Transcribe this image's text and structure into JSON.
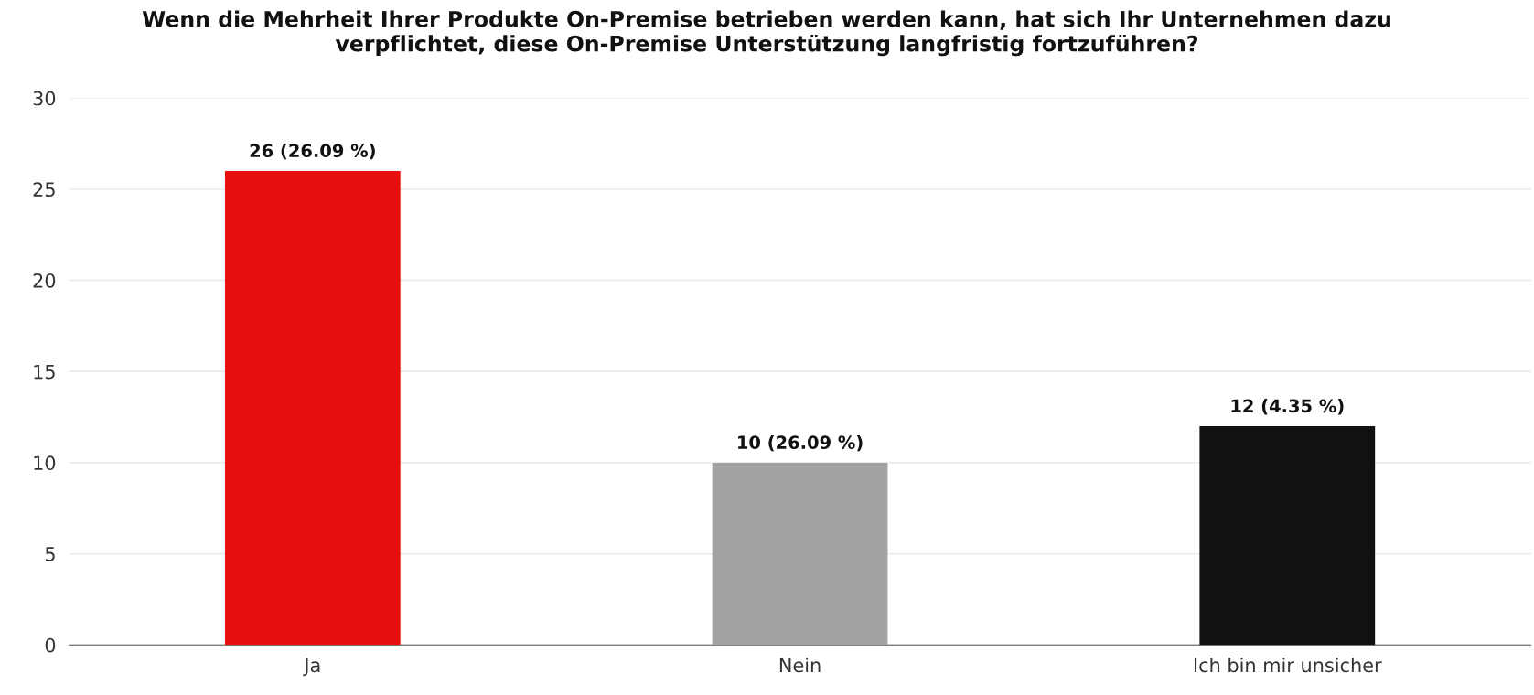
{
  "chart_data": {
    "type": "bar",
    "title": "Wenn die Mehrheit Ihrer Produkte On-Premise betrieben werden kann, hat sich Ihr Unternehmen dazu\nverpflichtet, diese On-Premise Unterstützung langfristig fortzuführen?",
    "categories": [
      "Ja",
      "Nein",
      "Ich bin mir unsicher"
    ],
    "values": [
      26,
      10,
      12
    ],
    "colors": [
      "#e8100f",
      "#a3a3a5",
      "#111111"
    ],
    "value_labels": [
      "26 (26.09 %)",
      "10 (26.09 %)",
      "12 (4.35 %)"
    ],
    "ylim": [
      0,
      30
    ],
    "yticks": [
      0,
      5,
      10,
      15,
      20,
      25,
      30
    ],
    "grid": "y",
    "legend": false
  }
}
